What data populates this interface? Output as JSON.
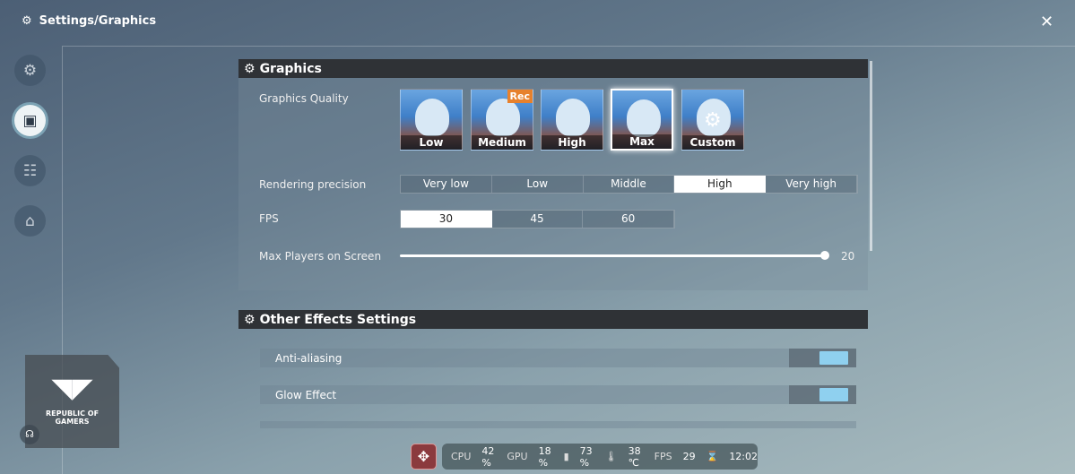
{
  "header": {
    "title": "Settings/Graphics",
    "icon": "gear-wrench-icon",
    "close_icon": "collapse-icon"
  },
  "sidebar": {
    "items": [
      {
        "icon": "gear-wrench-icon",
        "active": false
      },
      {
        "icon": "image-icon",
        "active": true
      },
      {
        "icon": "network-icon",
        "active": false
      },
      {
        "icon": "home-icon",
        "active": false
      }
    ]
  },
  "graphics": {
    "title": "Graphics",
    "quality": {
      "label": "Graphics Quality",
      "options": [
        "Low",
        "Medium",
        "High",
        "Max",
        "Custom"
      ],
      "selected": "Max",
      "rec_badge": "Rec",
      "rec_option": "Medium"
    },
    "rendering": {
      "label": "Rendering precision",
      "options": [
        "Very low",
        "Low",
        "Middle",
        "High",
        "Very high"
      ],
      "selected": "High"
    },
    "fps": {
      "label": "FPS",
      "options": [
        "30",
        "45",
        "60"
      ],
      "selected": "30"
    },
    "max_players": {
      "label": "Max Players on Screen",
      "value": "20"
    }
  },
  "other": {
    "title": "Other Effects Settings",
    "rows": [
      {
        "label": "Anti-aliasing",
        "on": true
      },
      {
        "label": "Glow Effect",
        "on": true
      }
    ]
  },
  "logo": {
    "text": "REPUBLIC OF GAMERS"
  },
  "status_bar": {
    "cpu_label": "CPU",
    "cpu": "42 %",
    "gpu_label": "GPU",
    "gpu": "18 %",
    "battery": "73 %",
    "temp": "38 ℃",
    "fps_label": "FPS",
    "fps": "29",
    "time": "12:02"
  },
  "colors": {
    "accent_toggle": "#8fd0ef",
    "rec": "#e7812c",
    "header_bg": "#2f3236"
  }
}
